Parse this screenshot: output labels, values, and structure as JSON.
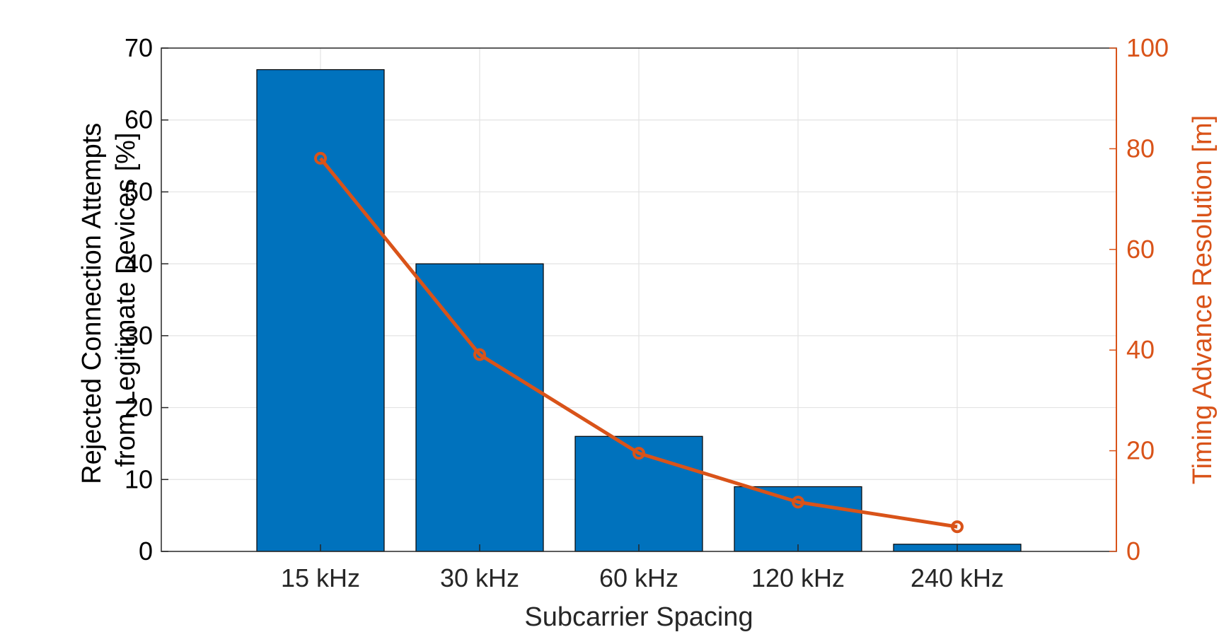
{
  "chart_data": {
    "type": "bar",
    "xlabel": "Subcarrier Spacing",
    "categories": [
      "15 kHz",
      "30 kHz",
      "60 kHz",
      "120 kHz",
      "240 kHz"
    ],
    "series": [
      {
        "type": "bar",
        "axis": "left",
        "values": [
          67,
          40,
          16,
          9,
          1
        ],
        "color": "#0072BD"
      },
      {
        "type": "line",
        "axis": "right",
        "marker": "circle",
        "values": [
          78.1,
          39.1,
          19.5,
          9.8,
          4.9
        ],
        "color": "#D95319"
      }
    ],
    "y_left": {
      "label_lines": [
        "Rejected Connection Attempts",
        "from Legitimate Devices [%]"
      ],
      "lim": [
        0,
        70
      ],
      "ticks": [
        0,
        10,
        20,
        30,
        40,
        50,
        60,
        70
      ]
    },
    "y_right": {
      "label": "Timing Advance Resolution [m]",
      "lim": [
        0,
        100
      ],
      "ticks": [
        0,
        20,
        40,
        60,
        80,
        100
      ],
      "color": "#D95319"
    },
    "grid": true
  }
}
